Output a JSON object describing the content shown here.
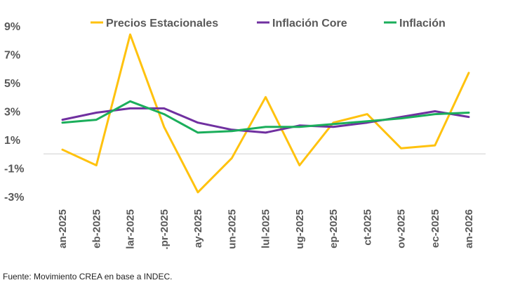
{
  "chart_data": {
    "type": "line",
    "title": "",
    "xlabel": "",
    "ylabel": "",
    "categories": [
      "an-2025",
      "eb-2025",
      "lar-2025",
      ".pr-2025",
      "ay-2025",
      "un-2025",
      "lul-2025",
      "ug-2025",
      "ep-2025",
      "ct-2025",
      "ov-2025",
      "ec-2025",
      "an-2026"
    ],
    "y_ticks": [
      "9%",
      "7%",
      "5%",
      "3%",
      "1%",
      "-1%",
      "-3%"
    ],
    "y_tick_values": [
      9,
      7,
      5,
      3,
      1,
      -1,
      -3
    ],
    "ylim": [
      -3,
      9
    ],
    "zero_line": true,
    "legend_position": "top",
    "series": [
      {
        "name": "Precios Estacionales",
        "color": "#FFC20E",
        "values": [
          0.3,
          -0.8,
          8.4,
          1.9,
          -2.7,
          -0.3,
          4.0,
          -0.8,
          2.2,
          2.8,
          0.4,
          0.6,
          5.7
        ]
      },
      {
        "name": "Inflación Core",
        "color": "#7030A0",
        "values": [
          2.4,
          2.9,
          3.2,
          3.2,
          2.2,
          1.7,
          1.5,
          2.0,
          1.9,
          2.2,
          2.6,
          3.0,
          2.6
        ]
      },
      {
        "name": "Inflación",
        "color": "#1BAE5B",
        "values": [
          2.2,
          2.4,
          3.7,
          2.8,
          1.5,
          1.6,
          1.9,
          1.9,
          2.1,
          2.3,
          2.5,
          2.8,
          2.9
        ]
      }
    ]
  },
  "source_note": "Fuente: Movimiento CREA en base a INDEC."
}
